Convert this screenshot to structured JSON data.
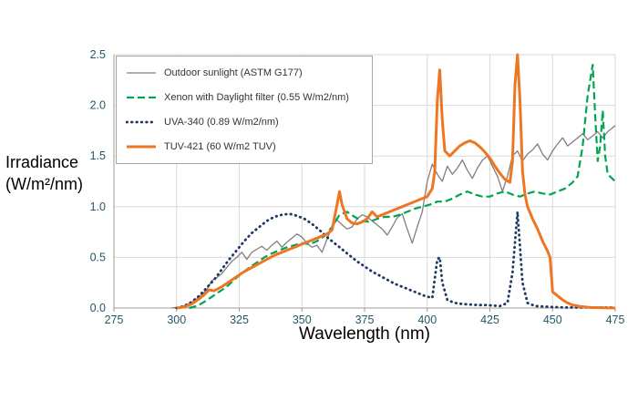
{
  "chart_data": {
    "type": "line",
    "title": "",
    "xlabel": "Wavelength (nm)",
    "ylabel_line1": "Irradiance",
    "ylabel_line2": "(W/m²/nm)",
    "xlim": [
      275,
      475
    ],
    "ylim": [
      0,
      2.5
    ],
    "grid": true,
    "legend_position": "top-left",
    "grid_color": "#d9d9d9",
    "axis_line_color": "#9b9b9b",
    "axis_tick_color": "#215868",
    "x_ticks": [
      {
        "v": 275,
        "label": "275"
      },
      {
        "v": 300,
        "label": "300"
      },
      {
        "v": 325,
        "label": "325"
      },
      {
        "v": 350,
        "label": "350"
      },
      {
        "v": 375,
        "label": "375"
      },
      {
        "v": 400,
        "label": "400"
      },
      {
        "v": 425,
        "label": "425"
      },
      {
        "v": 450,
        "label": "450"
      },
      {
        "v": 475,
        "label": "475"
      }
    ],
    "y_ticks": [
      {
        "v": 0.0,
        "label": "0.0"
      },
      {
        "v": 0.5,
        "label": "0.5"
      },
      {
        "v": 1.0,
        "label": "1.0"
      },
      {
        "v": 1.5,
        "label": "1.5"
      },
      {
        "v": 2.0,
        "label": "2.0"
      },
      {
        "v": 2.5,
        "label": "2.5"
      }
    ],
    "series": [
      {
        "name": "Outdoor sunlight (ASTM G177)",
        "color": "#7f7f7f",
        "style": "solid",
        "width": 1.3,
        "points": [
          [
            298,
            0
          ],
          [
            301,
            0.01
          ],
          [
            304,
            0.03
          ],
          [
            307,
            0.07
          ],
          [
            310,
            0.13
          ],
          [
            312,
            0.18
          ],
          [
            314,
            0.27
          ],
          [
            316,
            0.3
          ],
          [
            318,
            0.34
          ],
          [
            320,
            0.4
          ],
          [
            322,
            0.46
          ],
          [
            324,
            0.5
          ],
          [
            326,
            0.55
          ],
          [
            328,
            0.48
          ],
          [
            330,
            0.55
          ],
          [
            332,
            0.58
          ],
          [
            334,
            0.61
          ],
          [
            336,
            0.57
          ],
          [
            338,
            0.62
          ],
          [
            340,
            0.66
          ],
          [
            342,
            0.6
          ],
          [
            344,
            0.65
          ],
          [
            346,
            0.69
          ],
          [
            348,
            0.73
          ],
          [
            350,
            0.7
          ],
          [
            352,
            0.64
          ],
          [
            354,
            0.6
          ],
          [
            356,
            0.62
          ],
          [
            358,
            0.55
          ],
          [
            360,
            0.68
          ],
          [
            362,
            0.8
          ],
          [
            364,
            0.87
          ],
          [
            366,
            0.82
          ],
          [
            368,
            0.78
          ],
          [
            370,
            0.8
          ],
          [
            372,
            0.88
          ],
          [
            374,
            0.92
          ],
          [
            376,
            0.9
          ],
          [
            378,
            0.86
          ],
          [
            380,
            0.82
          ],
          [
            382,
            0.78
          ],
          [
            384,
            0.72
          ],
          [
            386,
            0.8
          ],
          [
            388,
            0.89
          ],
          [
            390,
            0.93
          ],
          [
            392,
            0.78
          ],
          [
            394,
            0.64
          ],
          [
            396,
            0.8
          ],
          [
            398,
            0.95
          ],
          [
            400,
            1.25
          ],
          [
            402,
            1.42
          ],
          [
            404,
            1.32
          ],
          [
            406,
            1.25
          ],
          [
            408,
            1.4
          ],
          [
            410,
            1.32
          ],
          [
            412,
            1.38
          ],
          [
            414,
            1.46
          ],
          [
            416,
            1.36
          ],
          [
            418,
            1.28
          ],
          [
            420,
            1.38
          ],
          [
            422,
            1.46
          ],
          [
            424,
            1.5
          ],
          [
            426,
            1.4
          ],
          [
            428,
            1.3
          ],
          [
            430,
            1.15
          ],
          [
            432,
            1.3
          ],
          [
            434,
            1.5
          ],
          [
            436,
            1.55
          ],
          [
            438,
            1.45
          ],
          [
            440,
            1.52
          ],
          [
            442,
            1.56
          ],
          [
            444,
            1.62
          ],
          [
            446,
            1.52
          ],
          [
            448,
            1.46
          ],
          [
            450,
            1.55
          ],
          [
            452,
            1.62
          ],
          [
            454,
            1.68
          ],
          [
            456,
            1.6
          ],
          [
            458,
            1.64
          ],
          [
            460,
            1.68
          ],
          [
            462,
            1.72
          ],
          [
            464,
            1.66
          ],
          [
            466,
            1.7
          ],
          [
            468,
            1.74
          ],
          [
            470,
            1.68
          ],
          [
            472,
            1.74
          ],
          [
            475,
            1.8
          ]
        ]
      },
      {
        "name": "Xenon with Daylight filter (0.55 W/m2/nm)",
        "color": "#00a64f",
        "style": "dashed",
        "width": 2.2,
        "points": [
          [
            305,
            0
          ],
          [
            308,
            0.02
          ],
          [
            311,
            0.06
          ],
          [
            314,
            0.11
          ],
          [
            317,
            0.16
          ],
          [
            320,
            0.21
          ],
          [
            323,
            0.28
          ],
          [
            326,
            0.34
          ],
          [
            329,
            0.4
          ],
          [
            332,
            0.45
          ],
          [
            335,
            0.5
          ],
          [
            338,
            0.54
          ],
          [
            341,
            0.57
          ],
          [
            344,
            0.6
          ],
          [
            347,
            0.62
          ],
          [
            350,
            0.64
          ],
          [
            353,
            0.63
          ],
          [
            356,
            0.66
          ],
          [
            359,
            0.71
          ],
          [
            362,
            0.8
          ],
          [
            365,
            0.92
          ],
          [
            368,
            0.95
          ],
          [
            371,
            0.9
          ],
          [
            374,
            0.86
          ],
          [
            377,
            0.85
          ],
          [
            380,
            0.88
          ],
          [
            383,
            0.9
          ],
          [
            386,
            0.9
          ],
          [
            389,
            0.92
          ],
          [
            392,
            0.95
          ],
          [
            395,
            0.98
          ],
          [
            398,
            1.0
          ],
          [
            401,
            1.02
          ],
          [
            404,
            1.05
          ],
          [
            407,
            1.05
          ],
          [
            410,
            1.08
          ],
          [
            413,
            1.12
          ],
          [
            416,
            1.15
          ],
          [
            419,
            1.12
          ],
          [
            422,
            1.1
          ],
          [
            425,
            1.1
          ],
          [
            428,
            1.13
          ],
          [
            431,
            1.15
          ],
          [
            434,
            1.12
          ],
          [
            437,
            1.1
          ],
          [
            440,
            1.13
          ],
          [
            443,
            1.15
          ],
          [
            446,
            1.13
          ],
          [
            449,
            1.12
          ],
          [
            452,
            1.15
          ],
          [
            455,
            1.18
          ],
          [
            458,
            1.24
          ],
          [
            460,
            1.3
          ],
          [
            462,
            1.6
          ],
          [
            464,
            2.1
          ],
          [
            466,
            2.4
          ],
          [
            467,
            1.9
          ],
          [
            468,
            1.45
          ],
          [
            469,
            1.6
          ],
          [
            470,
            1.95
          ],
          [
            471,
            1.5
          ],
          [
            472,
            1.32
          ],
          [
            475,
            1.25
          ]
        ]
      },
      {
        "name": "UVA-340 (0.89 W/m2/nm)",
        "color": "#1f3864",
        "style": "dotted",
        "width": 2.8,
        "points": [
          [
            300,
            0
          ],
          [
            303,
            0.02
          ],
          [
            306,
            0.06
          ],
          [
            309,
            0.12
          ],
          [
            312,
            0.2
          ],
          [
            315,
            0.28
          ],
          [
            318,
            0.38
          ],
          [
            321,
            0.48
          ],
          [
            324,
            0.57
          ],
          [
            327,
            0.66
          ],
          [
            330,
            0.74
          ],
          [
            333,
            0.8
          ],
          [
            336,
            0.86
          ],
          [
            339,
            0.9
          ],
          [
            342,
            0.92
          ],
          [
            345,
            0.93
          ],
          [
            348,
            0.91
          ],
          [
            351,
            0.88
          ],
          [
            354,
            0.83
          ],
          [
            357,
            0.77
          ],
          [
            360,
            0.7
          ],
          [
            363,
            0.64
          ],
          [
            366,
            0.58
          ],
          [
            369,
            0.52
          ],
          [
            372,
            0.46
          ],
          [
            375,
            0.41
          ],
          [
            378,
            0.36
          ],
          [
            381,
            0.32
          ],
          [
            384,
            0.28
          ],
          [
            387,
            0.24
          ],
          [
            390,
            0.21
          ],
          [
            393,
            0.18
          ],
          [
            396,
            0.15
          ],
          [
            399,
            0.12
          ],
          [
            402,
            0.1
          ],
          [
            404,
            0.48
          ],
          [
            405,
            0.5
          ],
          [
            406,
            0.25
          ],
          [
            408,
            0.08
          ],
          [
            411,
            0.05
          ],
          [
            414,
            0.04
          ],
          [
            417,
            0.035
          ],
          [
            420,
            0.03
          ],
          [
            423,
            0.03
          ],
          [
            426,
            0.025
          ],
          [
            429,
            0.02
          ],
          [
            432,
            0.05
          ],
          [
            434,
            0.35
          ],
          [
            436,
            0.95
          ],
          [
            438,
            0.25
          ],
          [
            440,
            0.05
          ],
          [
            443,
            0.02
          ],
          [
            446,
            0.015
          ],
          [
            450,
            0.01
          ],
          [
            455,
            0.005
          ],
          [
            460,
            0.005
          ],
          [
            475,
            0.005
          ]
        ]
      },
      {
        "name": "TUV-421 (60 W/m2 TUV)",
        "color": "#ee7623",
        "style": "solid",
        "width": 3,
        "points": [
          [
            300,
            0
          ],
          [
            303,
            0.01
          ],
          [
            306,
            0.04
          ],
          [
            309,
            0.09
          ],
          [
            311,
            0.13
          ],
          [
            313,
            0.18
          ],
          [
            315,
            0.17
          ],
          [
            318,
            0.21
          ],
          [
            321,
            0.26
          ],
          [
            324,
            0.31
          ],
          [
            327,
            0.36
          ],
          [
            330,
            0.4
          ],
          [
            333,
            0.44
          ],
          [
            336,
            0.48
          ],
          [
            339,
            0.52
          ],
          [
            342,
            0.55
          ],
          [
            345,
            0.58
          ],
          [
            348,
            0.61
          ],
          [
            351,
            0.64
          ],
          [
            354,
            0.67
          ],
          [
            357,
            0.7
          ],
          [
            360,
            0.73
          ],
          [
            362,
            0.77
          ],
          [
            364,
            1.02
          ],
          [
            365,
            1.15
          ],
          [
            366,
            1.02
          ],
          [
            368,
            0.88
          ],
          [
            370,
            0.84
          ],
          [
            372,
            0.83
          ],
          [
            374,
            0.85
          ],
          [
            376,
            0.88
          ],
          [
            378,
            0.95
          ],
          [
            380,
            0.9
          ],
          [
            382,
            0.92
          ],
          [
            385,
            0.95
          ],
          [
            388,
            0.98
          ],
          [
            391,
            1.01
          ],
          [
            394,
            1.04
          ],
          [
            397,
            1.07
          ],
          [
            400,
            1.1
          ],
          [
            402,
            1.18
          ],
          [
            403,
            1.35
          ],
          [
            404,
            2.05
          ],
          [
            405,
            2.35
          ],
          [
            406,
            1.85
          ],
          [
            407,
            1.55
          ],
          [
            409,
            1.5
          ],
          [
            411,
            1.55
          ],
          [
            413,
            1.6
          ],
          [
            415,
            1.63
          ],
          [
            417,
            1.65
          ],
          [
            419,
            1.63
          ],
          [
            421,
            1.59
          ],
          [
            423,
            1.54
          ],
          [
            425,
            1.48
          ],
          [
            427,
            1.4
          ],
          [
            429,
            1.33
          ],
          [
            431,
            1.27
          ],
          [
            433,
            1.24
          ],
          [
            434,
            1.45
          ],
          [
            435,
            2.2
          ],
          [
            436,
            2.5
          ],
          [
            437,
            2.05
          ],
          [
            438,
            1.35
          ],
          [
            439,
            1.12
          ],
          [
            440,
            1.0
          ],
          [
            442,
            0.88
          ],
          [
            444,
            0.78
          ],
          [
            446,
            0.66
          ],
          [
            448,
            0.56
          ],
          [
            449,
            0.5
          ],
          [
            450,
            0.16
          ],
          [
            452,
            0.12
          ],
          [
            454,
            0.08
          ],
          [
            456,
            0.05
          ],
          [
            458,
            0.03
          ],
          [
            461,
            0.015
          ],
          [
            465,
            0.005
          ],
          [
            475,
            0
          ]
        ]
      }
    ]
  }
}
